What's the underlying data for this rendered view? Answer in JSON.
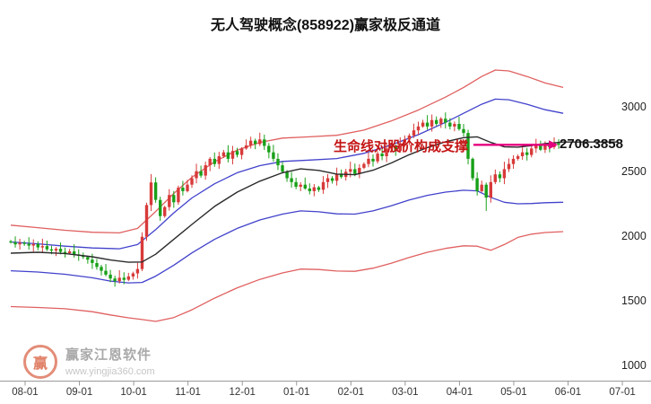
{
  "title": "无人驾驶概念(858922)赢家极反通道",
  "annotation": {
    "support_text": "生命线对股价构成支撑",
    "price_label": "2706.3858"
  },
  "watermark": {
    "brand": "赢家江恩软件",
    "url": "www.yingjia360.com",
    "logo_char": "赢"
  },
  "chart_data": {
    "type": "candlestick",
    "title": "无人驾驶概念(858922)赢家极反通道",
    "x_ticks": [
      "08-01",
      "09-01",
      "10-01",
      "11-01",
      "12-01",
      "01-01",
      "02-01",
      "03-01",
      "04-01",
      "05-01",
      "06-01",
      "07-01"
    ],
    "y_ticks": [
      3000,
      2500,
      2000,
      1500,
      1000
    ],
    "y_axis_side": "right",
    "ylim": [
      1000,
      3520
    ],
    "grid": false,
    "last_price": 2706.3858,
    "closes": [
      1952,
      1936,
      1948,
      1940,
      1926,
      1938,
      1912,
      1922,
      1898,
      1888,
      1902,
      1878,
      1868,
      1882,
      1858,
      1848,
      1838,
      1818,
      1792,
      1762,
      1732,
      1702,
      1672,
      1652,
      1678,
      1662,
      1688,
      1712,
      1745,
      1995,
      2240,
      2415,
      2280,
      2155,
      2225,
      2318,
      2262,
      2375,
      2348,
      2398,
      2448,
      2502,
      2468,
      2548,
      2598,
      2558,
      2618,
      2648,
      2598,
      2658,
      2628,
      2678,
      2702,
      2738,
      2712,
      2748,
      2698,
      2648,
      2598,
      2548,
      2498,
      2448,
      2418,
      2382,
      2398,
      2368,
      2348,
      2378,
      2358,
      2418,
      2448,
      2428,
      2478,
      2458,
      2498,
      2518,
      2482,
      2528,
      2558,
      2598,
      2578,
      2638,
      2618,
      2678,
      2698,
      2658,
      2718,
      2748,
      2778,
      2818,
      2848,
      2878,
      2848,
      2898,
      2868,
      2908,
      2878,
      2848,
      2868,
      2828,
      2798,
      2598,
      2448,
      2348,
      2398,
      2298,
      2418,
      2478,
      2448,
      2518,
      2558,
      2598,
      2618,
      2648,
      2628,
      2678,
      2698,
      2668,
      2708,
      2688,
      2718,
      2706.3858
    ],
    "wick_overrides": {
      "31": {
        "high": 2480
      },
      "105": {
        "low": 2195
      }
    },
    "bands": {
      "upper_red": [
        [
          0,
          2085
        ],
        [
          6,
          2065
        ],
        [
          12,
          2045
        ],
        [
          18,
          2030
        ],
        [
          24,
          2025
        ],
        [
          28,
          2060
        ],
        [
          32,
          2190
        ],
        [
          36,
          2330
        ],
        [
          40,
          2455
        ],
        [
          45,
          2575
        ],
        [
          50,
          2665
        ],
        [
          55,
          2725
        ],
        [
          60,
          2758
        ],
        [
          66,
          2768
        ],
        [
          72,
          2780
        ],
        [
          78,
          2820
        ],
        [
          84,
          2890
        ],
        [
          90,
          2975
        ],
        [
          96,
          3075
        ],
        [
          100,
          3150
        ],
        [
          104,
          3235
        ],
        [
          107,
          3285
        ],
        [
          110,
          3278
        ],
        [
          114,
          3235
        ],
        [
          118,
          3185
        ],
        [
          122,
          3150
        ]
      ],
      "upper_blue": [
        [
          0,
          1955
        ],
        [
          6,
          1940
        ],
        [
          12,
          1922
        ],
        [
          18,
          1908
        ],
        [
          24,
          1902
        ],
        [
          28,
          1935
        ],
        [
          32,
          2050
        ],
        [
          36,
          2180
        ],
        [
          40,
          2295
        ],
        [
          45,
          2405
        ],
        [
          50,
          2490
        ],
        [
          55,
          2545
        ],
        [
          60,
          2578
        ],
        [
          66,
          2588
        ],
        [
          72,
          2600
        ],
        [
          78,
          2640
        ],
        [
          84,
          2705
        ],
        [
          90,
          2785
        ],
        [
          96,
          2880
        ],
        [
          100,
          2950
        ],
        [
          104,
          3020
        ],
        [
          107,
          3060
        ],
        [
          110,
          3055
        ],
        [
          114,
          3020
        ],
        [
          118,
          2978
        ],
        [
          122,
          2950
        ]
      ],
      "middle": [
        [
          0,
          1868
        ],
        [
          6,
          1875
        ],
        [
          12,
          1865
        ],
        [
          18,
          1840
        ],
        [
          22,
          1815
        ],
        [
          26,
          1798
        ],
        [
          29,
          1800
        ],
        [
          32,
          1860
        ],
        [
          36,
          1975
        ],
        [
          40,
          2090
        ],
        [
          45,
          2230
        ],
        [
          50,
          2340
        ],
        [
          55,
          2425
        ],
        [
          60,
          2490
        ],
        [
          64,
          2520
        ],
        [
          68,
          2508
        ],
        [
          72,
          2480
        ],
        [
          76,
          2475
        ],
        [
          80,
          2510
        ],
        [
          84,
          2565
        ],
        [
          88,
          2630
        ],
        [
          92,
          2685
        ],
        [
          96,
          2730
        ],
        [
          100,
          2762
        ],
        [
          103,
          2768
        ],
        [
          106,
          2725
        ],
        [
          109,
          2690
        ],
        [
          112,
          2688
        ],
        [
          115,
          2700
        ],
        [
          118,
          2715
        ],
        [
          122,
          2728
        ],
        [
          134,
          2728
        ]
      ],
      "lower_blue": [
        [
          0,
          1732
        ],
        [
          6,
          1722
        ],
        [
          12,
          1705
        ],
        [
          18,
          1678
        ],
        [
          22,
          1652
        ],
        [
          26,
          1638
        ],
        [
          29,
          1642
        ],
        [
          32,
          1690
        ],
        [
          36,
          1775
        ],
        [
          40,
          1870
        ],
        [
          45,
          1975
        ],
        [
          50,
          2060
        ],
        [
          55,
          2125
        ],
        [
          60,
          2170
        ],
        [
          64,
          2195
        ],
        [
          68,
          2188
        ],
        [
          72,
          2172
        ],
        [
          76,
          2170
        ],
        [
          80,
          2195
        ],
        [
          84,
          2235
        ],
        [
          88,
          2280
        ],
        [
          92,
          2315
        ],
        [
          96,
          2340
        ],
        [
          100,
          2355
        ],
        [
          103,
          2350
        ],
        [
          106,
          2300
        ],
        [
          109,
          2262
        ],
        [
          112,
          2250
        ],
        [
          115,
          2252
        ],
        [
          118,
          2258
        ],
        [
          122,
          2262
        ]
      ],
      "lower_red": [
        [
          0,
          1455
        ],
        [
          6,
          1448
        ],
        [
          12,
          1438
        ],
        [
          18,
          1415
        ],
        [
          22,
          1390
        ],
        [
          26,
          1368
        ],
        [
          29,
          1355
        ],
        [
          32,
          1340
        ],
        [
          36,
          1370
        ],
        [
          40,
          1430
        ],
        [
          45,
          1520
        ],
        [
          50,
          1600
        ],
        [
          55,
          1665
        ],
        [
          60,
          1715
        ],
        [
          64,
          1745
        ],
        [
          68,
          1742
        ],
        [
          72,
          1730
        ],
        [
          76,
          1728
        ],
        [
          80,
          1752
        ],
        [
          84,
          1790
        ],
        [
          88,
          1835
        ],
        [
          92,
          1875
        ],
        [
          96,
          1905
        ],
        [
          100,
          1925
        ],
        [
          103,
          1922
        ],
        [
          106,
          1890
        ],
        [
          109,
          1935
        ],
        [
          112,
          1990
        ],
        [
          115,
          2015
        ],
        [
          118,
          2028
        ],
        [
          122,
          2035
        ]
      ]
    },
    "colors": {
      "up": "#d83a3a",
      "down": "#18a018",
      "band_red": "#e06060",
      "band_blue": "#4242cc",
      "band_mid": "#2b2b2b",
      "support": "#e5007d",
      "axis": "#999999",
      "axis_text": "#333333"
    }
  }
}
